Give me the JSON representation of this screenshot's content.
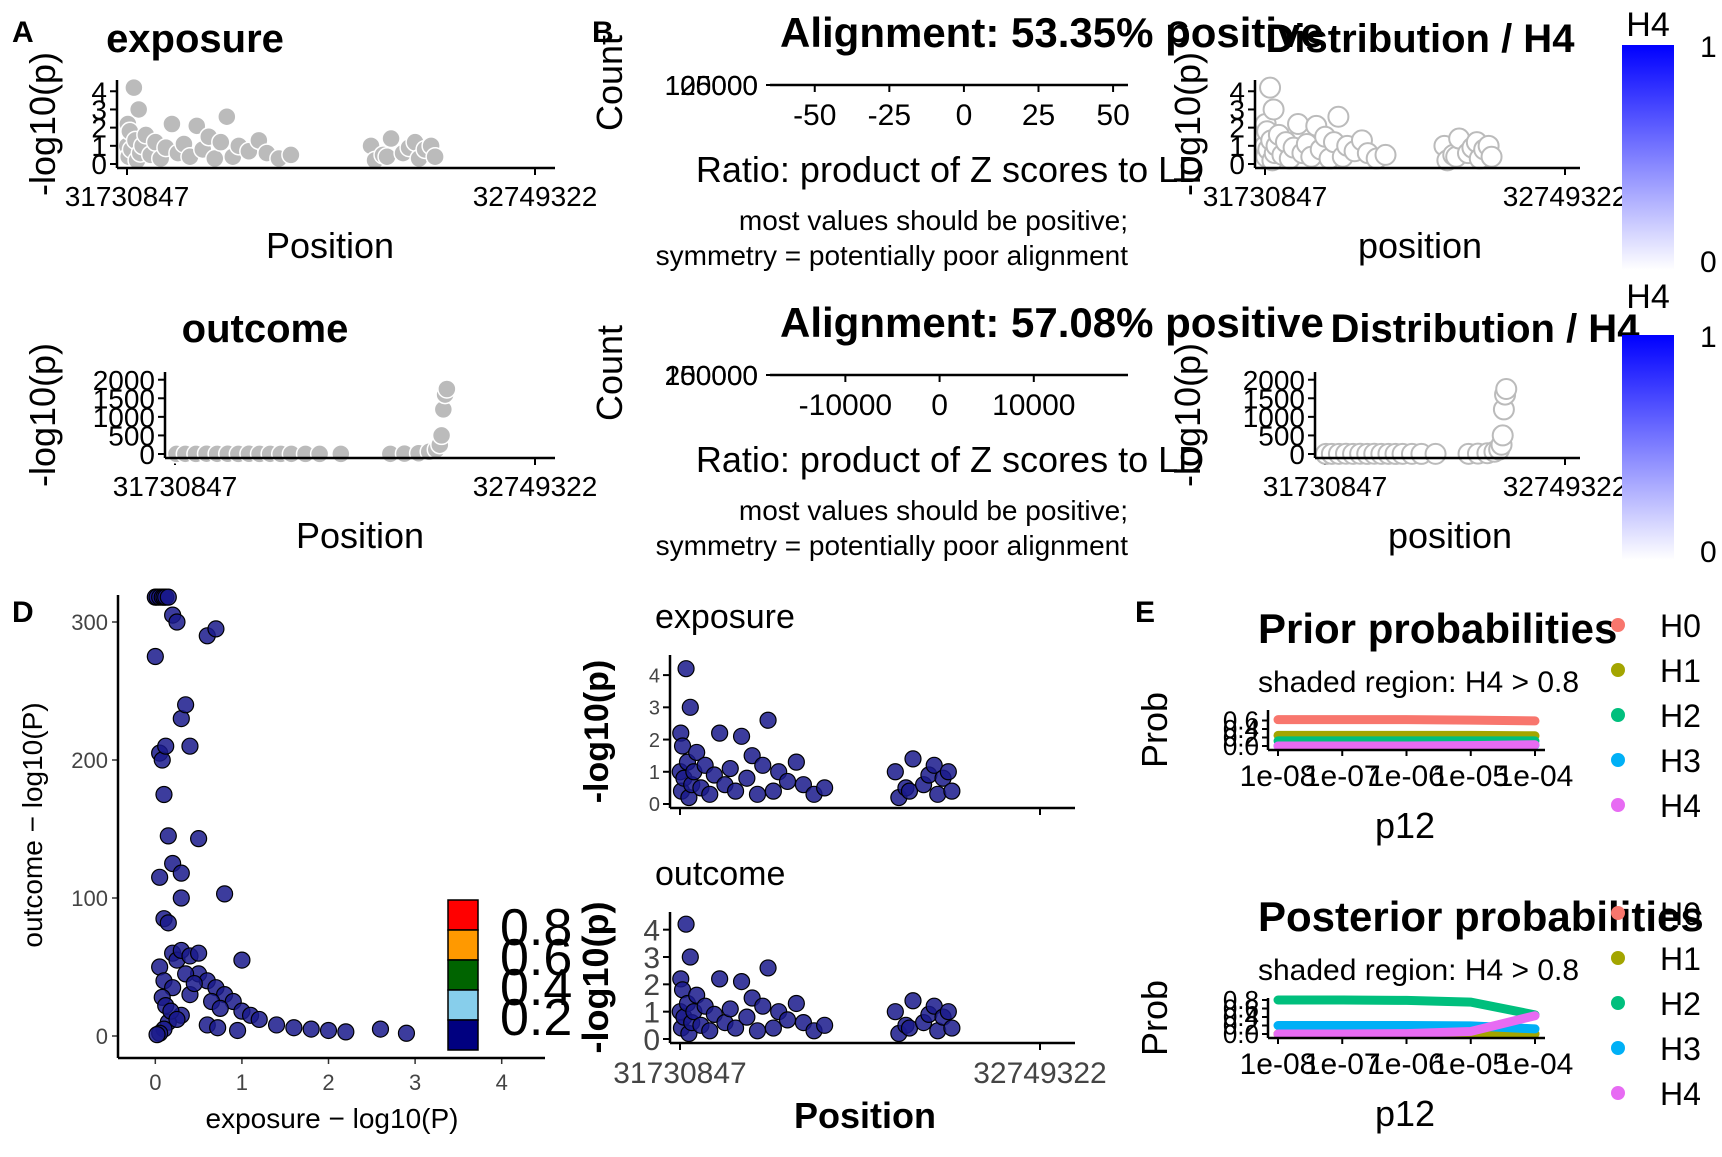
{
  "chart_data": [
    {
      "id": "A1",
      "type": "scatter",
      "panel": "A",
      "title": "exposure",
      "xlabel": "Position",
      "ylabel": "-log10(p)",
      "xticks": [
        "31730847",
        "32749322"
      ],
      "yticks": [
        "0",
        "1",
        "2",
        "3",
        "4"
      ],
      "xlim": [
        31730847,
        32749322
      ],
      "ylim": [
        0,
        4.4
      ],
      "color": "#bbbbbb",
      "filled": true,
      "x": [
        31731500,
        31733000,
        31735000,
        31738000,
        31742000,
        31748000,
        31752000,
        31756000,
        31760000,
        31764000,
        31770000,
        31778000,
        31790000,
        31802000,
        31815000,
        31828000,
        31843000,
        31858000,
        31873000,
        31888000,
        31905000,
        31920000,
        31935000,
        31950000,
        31965000,
        31980000,
        31995000,
        32010000,
        32035000,
        32060000,
        32080000,
        32110000,
        32140000,
        32340000,
        32350000,
        32370000,
        32380000,
        32390000,
        32420000,
        32435000,
        32450000,
        32460000,
        32475000,
        32490000,
        32500000
      ],
      "y": [
        1.0,
        2.2,
        0.4,
        1.8,
        0.8,
        4.2,
        1.3,
        0.2,
        3.0,
        0.6,
        1.0,
        1.6,
        0.5,
        1.2,
        0.3,
        0.9,
        2.2,
        0.6,
        1.1,
        0.4,
        2.1,
        0.8,
        1.5,
        0.3,
        1.2,
        2.6,
        0.4,
        1.0,
        0.7,
        1.3,
        0.6,
        0.3,
        0.5,
        1.0,
        0.2,
        0.5,
        0.4,
        1.4,
        0.6,
        0.9,
        1.2,
        0.3,
        0.8,
        1.0,
        0.4
      ]
    },
    {
      "id": "A2",
      "type": "scatter",
      "panel": "A",
      "title": "outcome",
      "xlabel": "Position",
      "ylabel": "-log10(p)",
      "xticks": [
        "31730847",
        "32749322"
      ],
      "yticks": [
        "0",
        "500",
        "1000",
        "1500",
        "2000"
      ],
      "xlim": [
        31730847,
        32749322
      ],
      "ylim": [
        0,
        2100
      ],
      "color": "#bbbbbb",
      "filled": true,
      "x": [
        31735000,
        31760000,
        31790000,
        31820000,
        31850000,
        31880000,
        31910000,
        31940000,
        31970000,
        32000000,
        32030000,
        32060000,
        32100000,
        32140000,
        32200000,
        32340000,
        32380000,
        32420000,
        32450000,
        32470000,
        32480000,
        32485000,
        32490000,
        32495000,
        32500000
      ],
      "y": [
        2,
        5,
        3,
        8,
        4,
        6,
        2,
        7,
        3,
        5,
        2,
        4,
        3,
        2,
        3,
        5,
        10,
        20,
        60,
        120,
        250,
        500,
        1200,
        1600,
        1750
      ]
    },
    {
      "id": "B1",
      "type": "bar",
      "panel": "B",
      "title": "Alignment: 53.35% positive",
      "xlabel": "Ratio: product of Z scores to LD",
      "ylabel": "Count",
      "subtitle_lines": [
        "most values should be positive;",
        "symmetry = potentially poor alignment"
      ],
      "xticks": [
        "-50",
        "-25",
        "0",
        "25",
        "50"
      ],
      "yticks": [
        "100000",
        "125000"
      ],
      "xlim": [
        -65,
        55
      ],
      "categories": [],
      "values": []
    },
    {
      "id": "B2",
      "type": "bar",
      "panel": "B",
      "title": "Alignment: 57.08% positive",
      "xlabel": "Ratio: product of Z scores to LD",
      "ylabel": "Count",
      "subtitle_lines": [
        "most values should be positive;",
        "symmetry = potentially poor alignment"
      ],
      "xticks": [
        "-10000",
        "0",
        "10000"
      ],
      "yticks": [
        "150000",
        "200000"
      ],
      "xlim": [
        -18000,
        20000
      ],
      "categories": [],
      "values": []
    },
    {
      "id": "C1",
      "type": "scatter",
      "panel": "C",
      "title": "Distribution / H4",
      "xlabel": "position",
      "ylabel": "-log10(p)",
      "xticks": [
        "31730847",
        "32749322"
      ],
      "yticks": [
        "0",
        "1",
        "2",
        "3",
        "4"
      ],
      "legend": {
        "title": "H4",
        "min": "0",
        "max": "1",
        "colors": [
          "#ffffff",
          "#0000ff"
        ]
      },
      "xlim": [
        31730847,
        32749322
      ],
      "ylim": [
        0,
        4.4
      ],
      "color": "#bbbbbb",
      "filled": false,
      "x": [
        31731500,
        31733000,
        31735000,
        31738000,
        31742000,
        31748000,
        31752000,
        31756000,
        31760000,
        31764000,
        31770000,
        31778000,
        31790000,
        31802000,
        31815000,
        31828000,
        31843000,
        31858000,
        31873000,
        31888000,
        31905000,
        31920000,
        31935000,
        31950000,
        31965000,
        31980000,
        31995000,
        32010000,
        32035000,
        32060000,
        32080000,
        32110000,
        32140000,
        32340000,
        32350000,
        32370000,
        32380000,
        32390000,
        32420000,
        32435000,
        32450000,
        32460000,
        32475000,
        32490000,
        32500000
      ],
      "y": [
        1.0,
        2.2,
        0.4,
        1.8,
        0.8,
        4.2,
        1.3,
        0.2,
        3.0,
        0.6,
        1.0,
        1.6,
        0.5,
        1.2,
        0.3,
        0.9,
        2.2,
        0.6,
        1.1,
        0.4,
        2.1,
        0.8,
        1.5,
        0.3,
        1.2,
        2.6,
        0.4,
        1.0,
        0.7,
        1.3,
        0.6,
        0.3,
        0.5,
        1.0,
        0.2,
        0.5,
        0.4,
        1.4,
        0.6,
        0.9,
        1.2,
        0.3,
        0.8,
        1.0,
        0.4
      ]
    },
    {
      "id": "C2",
      "type": "scatter",
      "panel": "C",
      "title": "Distribution / H4",
      "xlabel": "position",
      "ylabel": "-log10(p)",
      "xticks": [
        "31730847",
        "32749322"
      ],
      "yticks": [
        "0",
        "500",
        "1000",
        "1500",
        "2000"
      ],
      "legend": {
        "title": "H4",
        "min": "0",
        "max": "1",
        "colors": [
          "#ffffff",
          "#0000ff"
        ]
      },
      "xlim": [
        31730847,
        32749322
      ],
      "ylim": [
        0,
        2100
      ],
      "color": "#bbbbbb",
      "filled": false,
      "x": [
        31735000,
        31760000,
        31790000,
        31820000,
        31850000,
        31880000,
        31910000,
        31940000,
        31970000,
        32000000,
        32030000,
        32060000,
        32100000,
        32140000,
        32200000,
        32340000,
        32380000,
        32420000,
        32450000,
        32470000,
        32480000,
        32485000,
        32490000,
        32495000,
        32500000
      ],
      "y": [
        2,
        5,
        3,
        8,
        4,
        6,
        2,
        7,
        3,
        5,
        2,
        4,
        3,
        2,
        3,
        5,
        10,
        20,
        60,
        120,
        250,
        500,
        1200,
        1600,
        1750
      ]
    },
    {
      "id": "D1",
      "type": "scatter",
      "panel": "D",
      "xlabel": "exposure − log10(P)",
      "ylabel": "outcome − log10(P)",
      "xticks": [
        "0",
        "1",
        "2",
        "3",
        "4"
      ],
      "yticks": [
        "0",
        "100",
        "200",
        "300"
      ],
      "xlim": [
        -0.2,
        4.5
      ],
      "ylim": [
        -5,
        320
      ],
      "color": "#1a1a8c",
      "legend_colors": [
        "#ff0000",
        "#ff9900",
        "#006400",
        "#87ceeb",
        "#000080"
      ],
      "legend_labels": [
        "0.8",
        "0.6",
        "0.4",
        "0.2"
      ],
      "x": [
        0.0,
        0.02,
        0.05,
        0.08,
        0.1,
        0.12,
        0.15,
        0.2,
        0.25,
        0.3,
        0.35,
        0.4,
        0.5,
        0.6,
        0.7,
        0.0,
        0.05,
        0.1,
        0.15,
        0.2,
        0.3,
        0.05,
        0.1,
        0.15,
        0.2,
        0.25,
        0.3,
        0.4,
        0.5,
        0.6,
        0.7,
        0.8,
        0.9,
        1.0,
        1.1,
        1.2,
        1.4,
        1.6,
        1.8,
        2.0,
        2.2,
        2.6,
        2.9,
        0.05,
        0.1,
        0.2,
        0.4,
        0.65,
        0.75,
        0.3,
        0.15,
        0.1,
        0.05,
        0.02,
        0.08,
        0.12,
        0.18,
        0.25,
        0.6,
        0.72,
        0.95,
        0.08,
        0.12,
        0.5,
        0.3,
        0.8,
        1.0,
        0.35,
        0.45
      ],
      "y": [
        318,
        318,
        318,
        318,
        318,
        318,
        318,
        305,
        300,
        230,
        240,
        210,
        143,
        290,
        295,
        275,
        205,
        175,
        145,
        125,
        118,
        115,
        85,
        82,
        60,
        55,
        62,
        58,
        45,
        40,
        35,
        30,
        25,
        18,
        15,
        12,
        8,
        6,
        5,
        4,
        3,
        5,
        2,
        50,
        40,
        35,
        30,
        25,
        20,
        15,
        10,
        5,
        2,
        1,
        28,
        22,
        18,
        12,
        8,
        6,
        4,
        200,
        210,
        60,
        100,
        103,
        55,
        45,
        38
      ]
    },
    {
      "id": "D2",
      "type": "scatter",
      "panel": "D",
      "title": "exposure",
      "xlabel": "Position",
      "ylabel": "-log10(p)",
      "xticks": [
        "31730847",
        "32749322"
      ],
      "yticks": [
        "0",
        "1",
        "2",
        "3",
        "4"
      ],
      "xlim": [
        31730847,
        32749322
      ],
      "ylim": [
        0,
        4.5
      ],
      "color": "#1a1a8c",
      "x": [
        31731500,
        31733000,
        31735000,
        31738000,
        31742000,
        31748000,
        31752000,
        31756000,
        31760000,
        31764000,
        31770000,
        31778000,
        31790000,
        31802000,
        31815000,
        31828000,
        31843000,
        31858000,
        31873000,
        31888000,
        31905000,
        31920000,
        31935000,
        31950000,
        31965000,
        31980000,
        31995000,
        32010000,
        32035000,
        32060000,
        32080000,
        32110000,
        32140000,
        32340000,
        32350000,
        32370000,
        32380000,
        32390000,
        32420000,
        32435000,
        32450000,
        32460000,
        32475000,
        32490000,
        32500000
      ],
      "y": [
        1.0,
        2.2,
        0.4,
        1.8,
        0.8,
        4.2,
        1.3,
        0.2,
        3.0,
        0.6,
        1.0,
        1.6,
        0.5,
        1.2,
        0.3,
        0.9,
        2.2,
        0.6,
        1.1,
        0.4,
        2.1,
        0.8,
        1.5,
        0.3,
        1.2,
        2.6,
        0.4,
        1.0,
        0.7,
        1.3,
        0.6,
        0.3,
        0.5,
        1.0,
        0.2,
        0.5,
        0.4,
        1.4,
        0.6,
        0.9,
        1.2,
        0.3,
        0.8,
        1.0,
        0.4
      ]
    },
    {
      "id": "D3",
      "type": "scatter",
      "panel": "D",
      "title": "outcome",
      "xlabel": "Position",
      "ylabel": "-log10(p)",
      "xticks": [
        "31730847",
        "32749322"
      ],
      "yticks": [
        "0",
        "1",
        "2",
        "3",
        "4"
      ],
      "xlim": [
        31730847,
        32749322
      ],
      "ylim": [
        0,
        4.5
      ],
      "color": "#1a1a8c",
      "x": [
        31731500,
        31733000,
        31735000,
        31738000,
        31742000,
        31748000,
        31752000,
        31756000,
        31760000,
        31764000,
        31770000,
        31778000,
        31790000,
        31802000,
        31815000,
        31828000,
        31843000,
        31858000,
        31873000,
        31888000,
        31905000,
        31920000,
        31935000,
        31950000,
        31965000,
        31980000,
        31995000,
        32010000,
        32035000,
        32060000,
        32080000,
        32110000,
        32140000,
        32340000,
        32350000,
        32370000,
        32380000,
        32390000,
        32420000,
        32435000,
        32450000,
        32460000,
        32475000,
        32490000,
        32500000
      ],
      "y": [
        1.0,
        2.2,
        0.4,
        1.8,
        0.8,
        4.2,
        1.3,
        0.2,
        3.0,
        0.6,
        1.0,
        1.6,
        0.5,
        1.2,
        0.3,
        0.9,
        2.2,
        0.6,
        1.1,
        0.4,
        2.1,
        0.8,
        1.5,
        0.3,
        1.2,
        2.6,
        0.4,
        1.0,
        0.7,
        1.3,
        0.6,
        0.3,
        0.5,
        1.0,
        0.2,
        0.5,
        0.4,
        1.4,
        0.6,
        0.9,
        1.2,
        0.3,
        0.8,
        1.0,
        0.4
      ]
    },
    {
      "id": "E1",
      "type": "line",
      "panel": "E",
      "title": "Prior probabilities",
      "subtitle": "shaded region: H4 > 0.8",
      "xlabel": "p12",
      "ylabel": "Prob",
      "xticks": [
        "1e-08",
        "1e-07",
        "1e-06",
        "1e-05",
        "1e-04"
      ],
      "yticks": [
        "0.0",
        "0.2",
        "0.4",
        "0.6"
      ],
      "x": [
        -8,
        -7,
        -6,
        -5,
        -4
      ],
      "series": [
        {
          "name": "H0",
          "color": "#f8766d",
          "values": [
            0.62,
            0.62,
            0.62,
            0.61,
            0.59
          ]
        },
        {
          "name": "H1",
          "color": "#a3a500",
          "values": [
            0.25,
            0.25,
            0.25,
            0.25,
            0.24
          ]
        },
        {
          "name": "H2",
          "color": "#00bf7d",
          "values": [
            0.12,
            0.12,
            0.12,
            0.12,
            0.12
          ]
        },
        {
          "name": "H3",
          "color": "#00b0f6",
          "values": [
            0.0,
            0.0,
            0.0,
            0.01,
            0.02
          ]
        },
        {
          "name": "H4",
          "color": "#e76bf3",
          "values": [
            0.0,
            0.0,
            0.0,
            0.01,
            0.03
          ]
        }
      ]
    },
    {
      "id": "E2",
      "type": "line",
      "panel": "E",
      "title": "Posterior probabilities",
      "subtitle": "shaded region: H4 > 0.8",
      "xlabel": "p12",
      "ylabel": "Prob",
      "xticks": [
        "1e-08",
        "1e-07",
        "1e-06",
        "1e-05",
        "1e-04"
      ],
      "yticks": [
        "0.0",
        "0.2",
        "0.4",
        "0.6",
        "0.8"
      ],
      "x": [
        -8,
        -7,
        -6,
        -5,
        -4
      ],
      "series": [
        {
          "name": "H0",
          "color": "#f8766d",
          "values": [
            0.0,
            0.0,
            0.0,
            0.0,
            0.0
          ]
        },
        {
          "name": "H1",
          "color": "#a3a500",
          "values": [
            0.0,
            0.0,
            0.0,
            0.0,
            0.0
          ]
        },
        {
          "name": "H2",
          "color": "#00bf7d",
          "values": [
            0.8,
            0.8,
            0.79,
            0.75,
            0.45
          ]
        },
        {
          "name": "H3",
          "color": "#00b0f6",
          "values": [
            0.2,
            0.2,
            0.2,
            0.19,
            0.12
          ]
        },
        {
          "name": "H4",
          "color": "#e76bf3",
          "values": [
            0.0,
            0.0,
            0.01,
            0.06,
            0.43
          ]
        }
      ]
    }
  ],
  "panel_labels": {
    "a": "A",
    "b": "B",
    "c": "C",
    "d": "D",
    "e": "E"
  }
}
